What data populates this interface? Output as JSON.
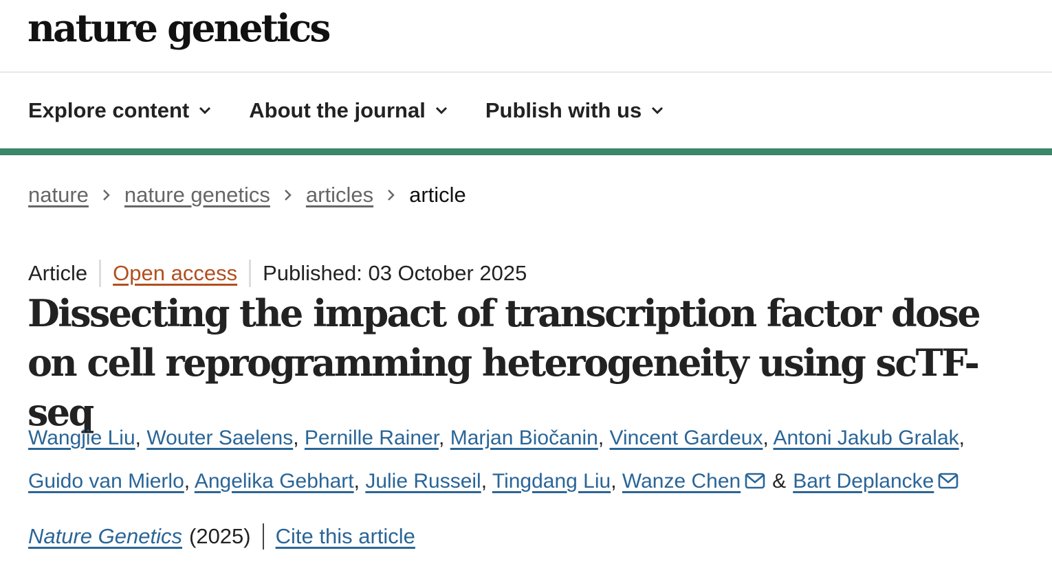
{
  "header": {
    "logo": "nature genetics"
  },
  "nav": [
    {
      "label": "Explore content"
    },
    {
      "label": "About the journal"
    },
    {
      "label": "Publish with us"
    }
  ],
  "brand_color": "#3a8769",
  "breadcrumb": [
    {
      "label": "nature"
    },
    {
      "label": "nature genetics"
    },
    {
      "label": "articles"
    },
    {
      "label": "article"
    }
  ],
  "meta": {
    "type": "Article",
    "access": "Open access",
    "published": "Published: 03 October 2025"
  },
  "title": "Dissecting the impact of transcription factor dose on cell reprogramming heterogeneity using scTF-seq",
  "authors": [
    "Wangjie Liu",
    "Wouter Saelens",
    "Pernille Rainer",
    "Marjan Biočanin",
    "Vincent Gardeux",
    "Antoni Jakub Gralak",
    "Guido van Mierlo",
    "Angelika Gebhart",
    "Julie Russeil",
    "Tingdang Liu",
    "Wanze Chen",
    "Bart Deplancke"
  ],
  "author_sep": {
    "comma": ",",
    "and": "&"
  },
  "citation": {
    "journal": "Nature Genetics",
    "year": "(2025)",
    "cite_label": "Cite this article"
  }
}
